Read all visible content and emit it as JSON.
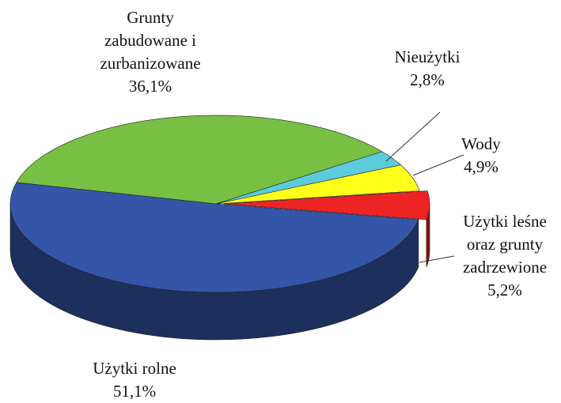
{
  "chart_data": {
    "type": "pie",
    "categories": [
      "Grunty zabudowane i zurbanizowane",
      "Nieużytki",
      "Wody",
      "Użytki leśne oraz grunty zadrzewione",
      "Użytki rolne"
    ],
    "values": [
      36.1,
      2.8,
      4.9,
      5.2,
      51.1
    ],
    "value_labels": [
      "36,1%",
      "2,8%",
      "4,9%",
      "5,2%",
      "51,1%"
    ],
    "colors": [
      "#77c043",
      "#5ccbdc",
      "#ffff1a",
      "#ee2323",
      "#3556a8"
    ]
  }
}
